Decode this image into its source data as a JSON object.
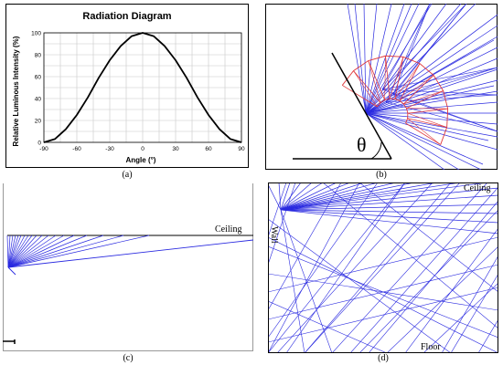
{
  "panel_a": {
    "caption": "(a)",
    "chart_data": {
      "type": "line",
      "title": "Radiation Diagram",
      "xlabel": "Angle (°)",
      "ylabel": "Relative Luminous Intensity (%)",
      "x_ticks": [
        "-90",
        "-60",
        "-30",
        "0",
        "30",
        "60",
        "90"
      ],
      "y_ticks": [
        "0",
        "20",
        "40",
        "60",
        "80",
        "100"
      ],
      "xlim": [
        -90,
        90
      ],
      "ylim": [
        0,
        100
      ],
      "grid": true,
      "series": [
        {
          "x": [
            -90,
            -80,
            -70,
            -60,
            -50,
            -40,
            -30,
            -20,
            -10,
            0,
            10,
            20,
            30,
            40,
            50,
            60,
            70,
            80,
            90
          ],
          "y": [
            0,
            3,
            12,
            25,
            41,
            59,
            75,
            88,
            97,
            100,
            97,
            88,
            75,
            59,
            41,
            25,
            12,
            3,
            0
          ]
        }
      ],
      "colors": {
        "line": "#000000",
        "grid": "#c8c8c8"
      }
    }
  },
  "panel_b": {
    "caption": "(b)",
    "theta_label": "θ"
  },
  "panel_c": {
    "caption": "(c)",
    "ceiling_label": "Ceiling"
  },
  "panel_d": {
    "caption": "(d)",
    "ceiling_label": "Ceiling",
    "wall_label": "Wall",
    "floor_label": "Floor"
  },
  "colors": {
    "ray": "#2a2ae0",
    "diagram": "#e0383c",
    "frame": "#000000"
  }
}
